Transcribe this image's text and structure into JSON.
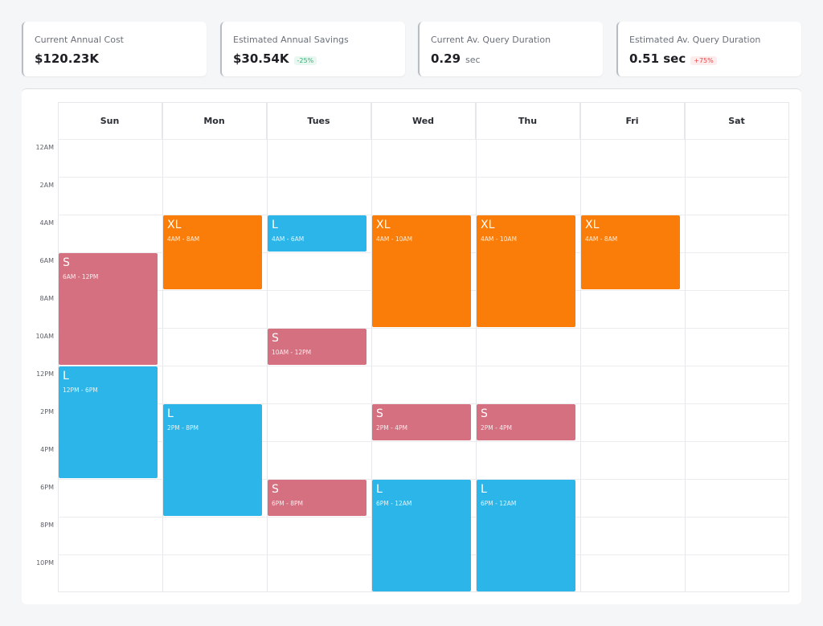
{
  "cards": [
    {
      "label": "Current Annual Cost",
      "value": "$120.23K",
      "unit": "",
      "badge": ""
    },
    {
      "label": "Estimated Annual Savings",
      "value": "$30.54K",
      "unit": "",
      "badge": "-25%",
      "badge_type": "good"
    },
    {
      "label": "Current Av. Query Duration",
      "value": "0.29",
      "unit": "sec",
      "badge": ""
    },
    {
      "label": "Estimated Av.  Query Duration",
      "value": "0.51 sec",
      "unit": "",
      "badge": "+75%",
      "badge_type": "bad"
    }
  ],
  "days": [
    "Sun",
    "Mon",
    "Tues",
    "Wed",
    "Thu",
    "Fri",
    "Sat"
  ],
  "time_labels": [
    "12AM",
    "2AM",
    "4AM",
    "6AM",
    "8AM",
    "10AM",
    "12PM",
    "2PM",
    "4PM",
    "6PM",
    "8PM",
    "10PM"
  ],
  "colors": {
    "XL": "#f97d08",
    "L": "#2bb5e8",
    "S": "#d47080"
  },
  "events": [
    {
      "day": 0,
      "start": 6,
      "end": 12,
      "size": "S",
      "time": "6AM - 12PM"
    },
    {
      "day": 0,
      "start": 12,
      "end": 18,
      "size": "L",
      "time": "12PM - 6PM"
    },
    {
      "day": 1,
      "start": 4,
      "end": 8,
      "size": "XL",
      "time": "4AM - 8AM"
    },
    {
      "day": 1,
      "start": 14,
      "end": 20,
      "size": "L",
      "time": "2PM - 8PM"
    },
    {
      "day": 2,
      "start": 4,
      "end": 6,
      "size": "L",
      "time": "4AM - 6AM"
    },
    {
      "day": 2,
      "start": 10,
      "end": 12,
      "size": "S",
      "time": "10AM - 12PM"
    },
    {
      "day": 2,
      "start": 18,
      "end": 20,
      "size": "S",
      "time": "6PM - 8PM"
    },
    {
      "day": 3,
      "start": 4,
      "end": 10,
      "size": "XL",
      "time": "4AM - 10AM"
    },
    {
      "day": 3,
      "start": 14,
      "end": 16,
      "size": "S",
      "time": "2PM - 4PM"
    },
    {
      "day": 3,
      "start": 18,
      "end": 24,
      "size": "L",
      "time": "6PM - 12AM"
    },
    {
      "day": 4,
      "start": 4,
      "end": 10,
      "size": "XL",
      "time": "4AM - 10AM"
    },
    {
      "day": 4,
      "start": 14,
      "end": 16,
      "size": "S",
      "time": "2PM - 4PM"
    },
    {
      "day": 4,
      "start": 18,
      "end": 24,
      "size": "L",
      "time": "6PM - 12AM"
    },
    {
      "day": 5,
      "start": 4,
      "end": 8,
      "size": "XL",
      "time": "4AM - 8AM"
    }
  ]
}
